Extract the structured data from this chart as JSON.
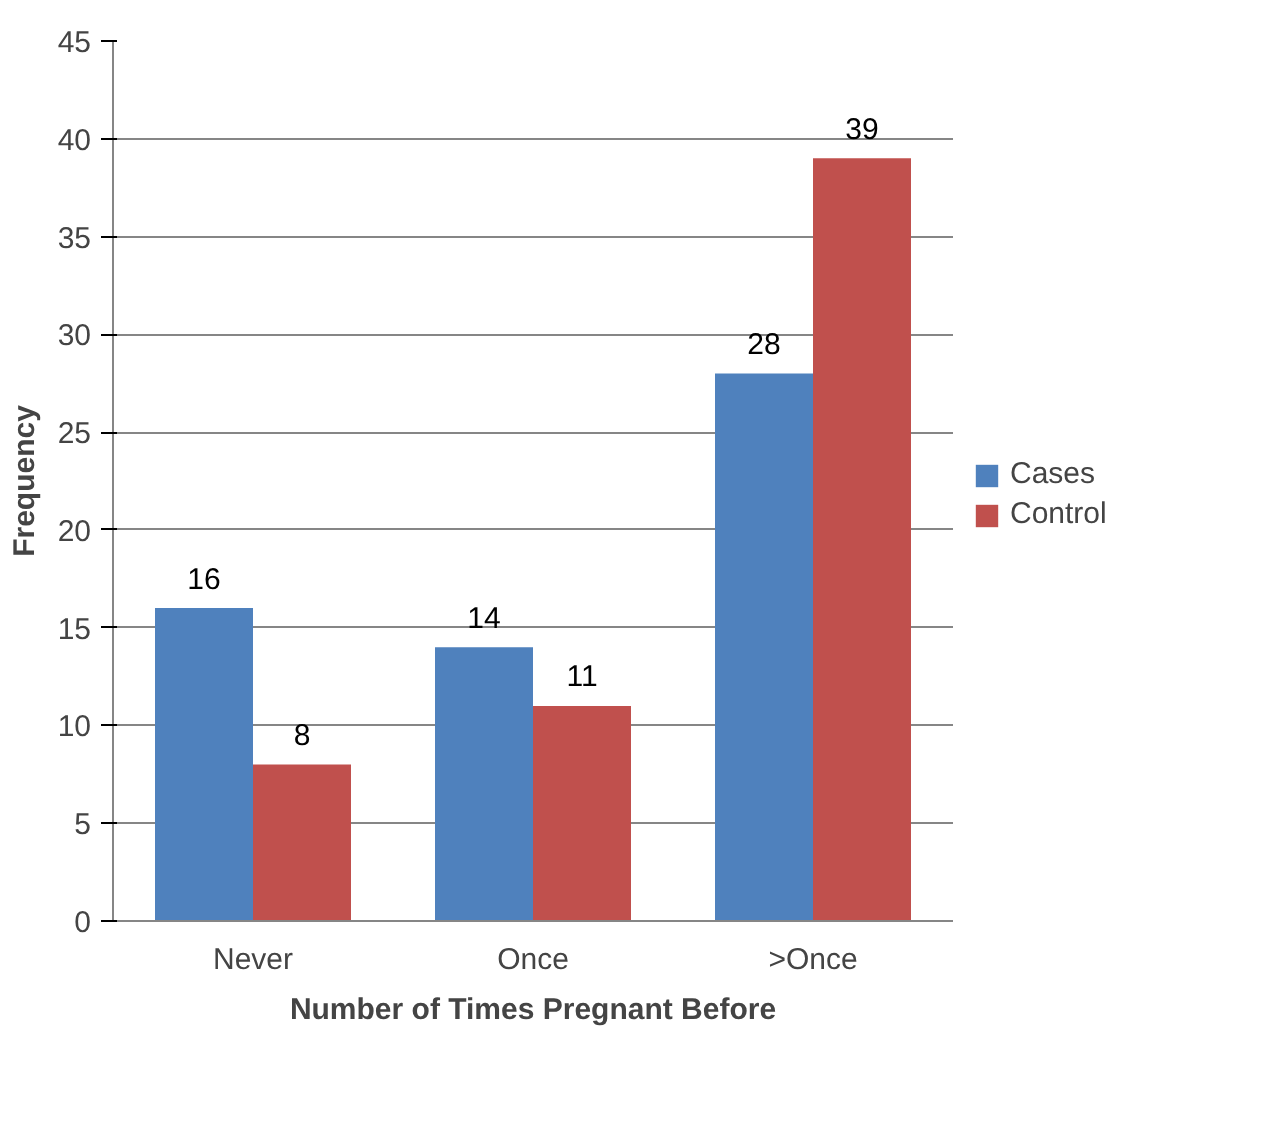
{
  "chart_data": {
    "type": "bar",
    "xlabel": "Number of Times Pregnant Before",
    "ylabel": "Frequency",
    "categories": [
      "Never",
      "Once",
      ">Once"
    ],
    "series": [
      {
        "name": "Cases",
        "color": "#4f81bd",
        "values": [
          16,
          14,
          28
        ]
      },
      {
        "name": "Control",
        "color": "#c0504d",
        "values": [
          8,
          11,
          39
        ]
      }
    ],
    "ylim": [
      0,
      45
    ],
    "yticks": [
      0,
      5,
      10,
      15,
      20,
      25,
      30,
      35,
      40,
      45
    ],
    "grid": "y",
    "legend": "right",
    "data_labels": true
  }
}
